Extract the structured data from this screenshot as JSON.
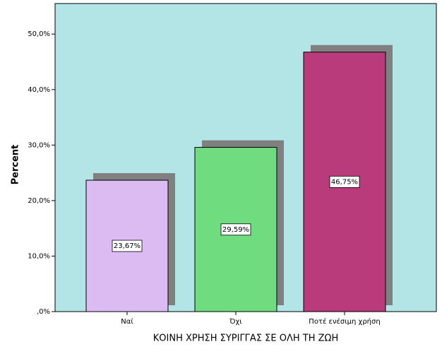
{
  "chart_data": {
    "type": "bar",
    "x_label": "ΚΟΙΝΗ ΧΡΗΣΗ ΣΥΡΙΓΓΑΣ ΣΕ ΟΛΗ ΤΗ ΖΩΗ",
    "y_label": "Percent",
    "categories": [
      "Ναί",
      "Όχι",
      "Ποτέ ενέσιμη χρήση"
    ],
    "values": [
      23.67,
      29.59,
      46.75
    ],
    "value_labels": [
      "23,67%",
      "29,59%",
      "46,75%"
    ],
    "colors": [
      "#dcbbf2",
      "#6fdc80",
      "#ba3b7b"
    ],
    "ylim": [
      0,
      55.5
    ],
    "yticks": [
      {
        "value": 0,
        "label": ",0%"
      },
      {
        "value": 10,
        "label": "10,0%"
      },
      {
        "value": 20,
        "label": "20,0%"
      },
      {
        "value": 30,
        "label": "30,0%"
      },
      {
        "value": 40,
        "label": "40,0%"
      },
      {
        "value": 50,
        "label": "50,0%"
      }
    ]
  }
}
